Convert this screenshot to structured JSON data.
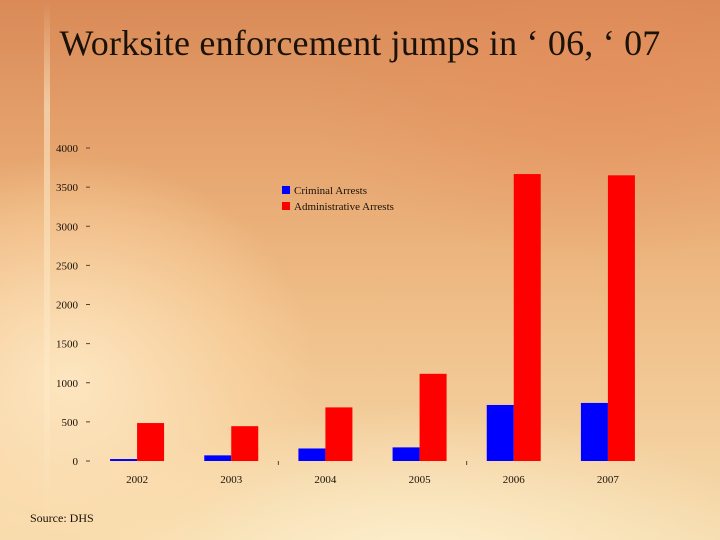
{
  "slide": {
    "title": "Worksite enforcement jumps in ‘ 06, ‘ 07",
    "source": "Source: DHS"
  },
  "chart_data": {
    "type": "bar",
    "categories": [
      "2002",
      "2003",
      "2004",
      "2005",
      "2006",
      "2007"
    ],
    "series": [
      {
        "name": "Criminal Arrests",
        "color": "#0000ff",
        "values": [
          25,
          72,
          160,
          174,
          716,
          742
        ]
      },
      {
        "name": "Administrative Arrests",
        "color": "#ff0000",
        "values": [
          485,
          445,
          685,
          1114,
          3667,
          3651
        ]
      }
    ],
    "ylim": [
      0,
      4000
    ],
    "yticks": [
      "0",
      "500",
      "1000",
      "1500",
      "2000",
      "2500",
      "3000",
      "3500",
      "4000"
    ],
    "legend": "top-center",
    "grid": false
  }
}
